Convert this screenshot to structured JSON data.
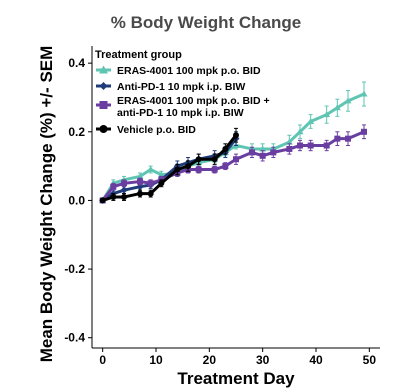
{
  "chart_data": {
    "type": "line",
    "title": "% Body Weight Change",
    "xlabel": "Treatment Day",
    "ylabel": "Mean Body Weight Change (%) +/- SEM",
    "xlim": [
      -2,
      52
    ],
    "ylim": [
      -0.43,
      0.45
    ],
    "xticks": [
      "0",
      "10",
      "20",
      "30",
      "40",
      "50"
    ],
    "yticks": [
      "-0.4",
      "-0.2",
      "0.0",
      "0.2",
      "0.4"
    ],
    "grid": false,
    "legend": {
      "title": "Treatment group",
      "position": "top-left"
    },
    "series": [
      {
        "name": "ERAS-4001 100 mpk p.o. BID",
        "color": "#5ec5b2",
        "marker": "triangle",
        "x": [
          0,
          2,
          4,
          7,
          9,
          11,
          14,
          16,
          18,
          21,
          23,
          25,
          28,
          30,
          32,
          35,
          37,
          39,
          42,
          44,
          46,
          49
        ],
        "y": [
          0.0,
          0.05,
          0.06,
          0.07,
          0.09,
          0.075,
          0.08,
          0.1,
          0.11,
          0.12,
          0.14,
          0.16,
          0.15,
          0.15,
          0.15,
          0.17,
          0.2,
          0.23,
          0.25,
          0.27,
          0.29,
          0.31
        ],
        "err": [
          0.005,
          0.01,
          0.01,
          0.01,
          0.01,
          0.01,
          0.01,
          0.01,
          0.01,
          0.01,
          0.01,
          0.01,
          0.015,
          0.015,
          0.015,
          0.02,
          0.02,
          0.02,
          0.025,
          0.025,
          0.03,
          0.035
        ]
      },
      {
        "name": "Anti-PD-1 10 mpk i.p. BIW",
        "color": "#1f3c7a",
        "marker": "diamond",
        "x": [
          0,
          2,
          4,
          7,
          9,
          11,
          14,
          16,
          18,
          21,
          23,
          25
        ],
        "y": [
          0.0,
          0.02,
          0.03,
          0.04,
          0.045,
          0.06,
          0.1,
          0.11,
          0.12,
          0.13,
          0.14,
          0.18
        ],
        "err": [
          0.005,
          0.01,
          0.01,
          0.01,
          0.01,
          0.01,
          0.015,
          0.015,
          0.015,
          0.015,
          0.015,
          0.02
        ]
      },
      {
        "name": "ERAS-4001 100 mpk p.o. BID + anti-PD-1 10 mpk i.p. BIW",
        "color": "#6a3ea1",
        "marker": "square",
        "x": [
          0,
          2,
          4,
          7,
          9,
          11,
          14,
          16,
          18,
          21,
          23,
          25,
          28,
          30,
          32,
          35,
          37,
          39,
          42,
          44,
          46,
          49
        ],
        "y": [
          0.0,
          0.04,
          0.05,
          0.055,
          0.05,
          0.06,
          0.08,
          0.09,
          0.09,
          0.09,
          0.1,
          0.12,
          0.14,
          0.13,
          0.14,
          0.15,
          0.16,
          0.16,
          0.16,
          0.18,
          0.18,
          0.2
        ],
        "err": [
          0.005,
          0.01,
          0.01,
          0.01,
          0.01,
          0.01,
          0.01,
          0.01,
          0.01,
          0.01,
          0.01,
          0.015,
          0.015,
          0.015,
          0.015,
          0.015,
          0.015,
          0.015,
          0.015,
          0.02,
          0.02,
          0.02
        ]
      },
      {
        "name": "Vehicle p.o. BID",
        "color": "#000000",
        "marker": "circle",
        "x": [
          0,
          2,
          4,
          7,
          9,
          11,
          14,
          16,
          18,
          21,
          23,
          25
        ],
        "y": [
          0.0,
          0.01,
          0.01,
          0.02,
          0.02,
          0.05,
          0.09,
          0.1,
          0.12,
          0.12,
          0.15,
          0.19
        ],
        "err": [
          0.005,
          0.01,
          0.01,
          0.01,
          0.01,
          0.01,
          0.015,
          0.015,
          0.015,
          0.015,
          0.015,
          0.02
        ]
      }
    ]
  }
}
